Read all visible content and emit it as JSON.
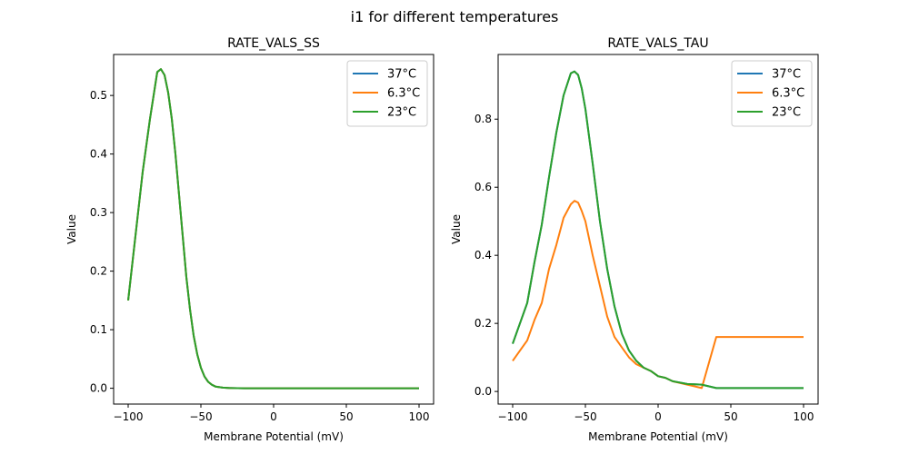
{
  "figure": {
    "suptitle": "i1 for different temperatures"
  },
  "chart_data": [
    {
      "type": "line",
      "title": "RATE_VALS_SS",
      "xlabel": "Membrane Potential (mV)",
      "ylabel": "Value",
      "xlim": [
        -110,
        110
      ],
      "ylim": [
        -0.027,
        0.57
      ],
      "xticks": [
        -100,
        -50,
        0,
        50,
        100
      ],
      "xtick_labels": [
        "−100",
        "−50",
        "0",
        "50",
        "100"
      ],
      "yticks": [
        0.0,
        0.1,
        0.2,
        0.3,
        0.4,
        0.5
      ],
      "ytick_labels": [
        "0.0",
        "0.1",
        "0.2",
        "0.3",
        "0.4",
        "0.5"
      ],
      "grid": false,
      "legend": "top-right",
      "x": [
        -100,
        -95,
        -90,
        -85,
        -80,
        -77.5,
        -75,
        -72.5,
        -70,
        -67.5,
        -65,
        -62.5,
        -60,
        -57.5,
        -55,
        -52.5,
        -50,
        -47.5,
        -45,
        -42.5,
        -40,
        -35,
        -30,
        -20,
        0,
        50,
        100
      ],
      "series": [
        {
          "name": "37°C",
          "color": "#1f77b4",
          "values": [
            0.15,
            0.26,
            0.37,
            0.46,
            0.54,
            0.545,
            0.535,
            0.505,
            0.46,
            0.4,
            0.33,
            0.26,
            0.19,
            0.135,
            0.09,
            0.058,
            0.035,
            0.02,
            0.011,
            0.006,
            0.003,
            0.001,
            0.0003,
            0.0,
            0.0,
            0.0,
            0.0
          ]
        },
        {
          "name": "6.3°C",
          "color": "#ff7f0e",
          "values": [
            0.15,
            0.26,
            0.37,
            0.46,
            0.54,
            0.545,
            0.535,
            0.505,
            0.46,
            0.4,
            0.33,
            0.26,
            0.19,
            0.135,
            0.09,
            0.058,
            0.035,
            0.02,
            0.011,
            0.006,
            0.003,
            0.001,
            0.0003,
            0.0,
            0.0,
            0.0,
            0.0
          ]
        },
        {
          "name": "23°C",
          "color": "#2ca02c",
          "values": [
            0.15,
            0.26,
            0.37,
            0.46,
            0.54,
            0.545,
            0.535,
            0.505,
            0.46,
            0.4,
            0.33,
            0.26,
            0.19,
            0.135,
            0.09,
            0.058,
            0.035,
            0.02,
            0.011,
            0.006,
            0.003,
            0.001,
            0.0003,
            0.0,
            0.0,
            0.0,
            0.0
          ]
        }
      ]
    },
    {
      "type": "line",
      "title": "RATE_VALS_TAU",
      "xlabel": "Membrane Potential (mV)",
      "ylabel": "Value",
      "xlim": [
        -110,
        110
      ],
      "ylim": [
        -0.037,
        0.99
      ],
      "xticks": [
        -100,
        -50,
        0,
        50,
        100
      ],
      "xtick_labels": [
        "−100",
        "−50",
        "0",
        "50",
        "100"
      ],
      "yticks": [
        0.0,
        0.2,
        0.4,
        0.6,
        0.8
      ],
      "ytick_labels": [
        "0.0",
        "0.2",
        "0.4",
        "0.6",
        "0.8"
      ],
      "grid": false,
      "legend": "top-right",
      "series": [
        {
          "name": "37°C",
          "color": "#1f77b4",
          "x": [
            -100,
            -90,
            -85,
            -80,
            -75,
            -70,
            -65,
            -60,
            -57.5,
            -55,
            -52.5,
            -50,
            -45,
            -40,
            -35,
            -30,
            -25,
            -20,
            -15,
            -10,
            -5,
            0,
            5,
            10,
            20,
            30,
            40,
            50,
            100
          ],
          "values": [
            0.14,
            0.26,
            0.38,
            0.49,
            0.63,
            0.76,
            0.87,
            0.935,
            0.94,
            0.93,
            0.89,
            0.83,
            0.67,
            0.5,
            0.36,
            0.25,
            0.17,
            0.12,
            0.09,
            0.07,
            0.06,
            0.045,
            0.04,
            0.03,
            0.022,
            0.02,
            0.01,
            0.01,
            0.01
          ]
        },
        {
          "name": "6.3°C",
          "color": "#ff7f0e",
          "x": [
            -100,
            -90,
            -85,
            -80,
            -75,
            -70,
            -65,
            -60,
            -57.5,
            -55,
            -52.5,
            -50,
            -45,
            -40,
            -35,
            -30,
            -25,
            -20,
            -15,
            -10,
            -5,
            0,
            5,
            10,
            20,
            30,
            40,
            50,
            100
          ],
          "values": [
            0.09,
            0.15,
            0.21,
            0.26,
            0.36,
            0.43,
            0.51,
            0.55,
            0.56,
            0.555,
            0.53,
            0.5,
            0.4,
            0.31,
            0.22,
            0.16,
            0.13,
            0.1,
            0.08,
            0.07,
            0.06,
            0.045,
            0.04,
            0.03,
            0.02,
            0.01,
            0.16,
            0.16,
            0.16
          ]
        },
        {
          "name": "23°C",
          "color": "#2ca02c",
          "x": [
            -100,
            -90,
            -85,
            -80,
            -75,
            -70,
            -65,
            -60,
            -57.5,
            -55,
            -52.5,
            -50,
            -45,
            -40,
            -35,
            -30,
            -25,
            -20,
            -15,
            -10,
            -5,
            0,
            5,
            10,
            20,
            30,
            40,
            50,
            100
          ],
          "values": [
            0.14,
            0.26,
            0.38,
            0.49,
            0.63,
            0.76,
            0.87,
            0.935,
            0.94,
            0.93,
            0.89,
            0.83,
            0.67,
            0.5,
            0.36,
            0.25,
            0.17,
            0.12,
            0.09,
            0.07,
            0.06,
            0.045,
            0.04,
            0.03,
            0.022,
            0.02,
            0.01,
            0.01,
            0.01
          ]
        }
      ]
    }
  ]
}
